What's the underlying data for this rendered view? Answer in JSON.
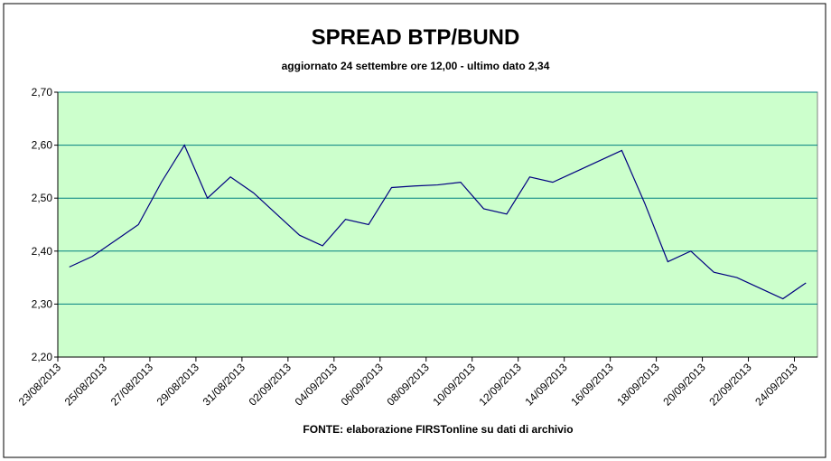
{
  "chart_data": {
    "type": "line",
    "title": "SPREAD BTP/BUND",
    "subtitle": "aggiornato 24 settembre ore 12,00  - ultimo dato 2,34",
    "source": "FONTE:  elaborazione FIRSTonline su dati di archivio",
    "categories": [
      "23/08/2013",
      null,
      "25/08/2013",
      null,
      "27/08/2013",
      null,
      "29/08/2013",
      null,
      "31/08/2013",
      null,
      "02/09/2013",
      null,
      "04/09/2013",
      null,
      "06/09/2013",
      null,
      "08/09/2013",
      null,
      "10/09/2013",
      null,
      "12/09/2013",
      null,
      "14/09/2013",
      null,
      "16/09/2013",
      null,
      "18/09/2013",
      null,
      "20/09/2013",
      null,
      "22/09/2013",
      null,
      "24/09/2013"
    ],
    "series": [
      {
        "color": "#000080",
        "values": [
          2.37,
          2.39,
          2.42,
          2.45,
          2.53,
          2.6,
          2.5,
          2.54,
          2.51,
          2.47,
          2.43,
          2.41,
          2.46,
          2.45,
          2.52,
          2.523,
          2.525,
          2.53,
          2.48,
          2.47,
          2.54,
          2.53,
          2.55,
          2.57,
          2.59,
          2.49,
          2.38,
          2.4,
          2.36,
          2.35,
          2.33,
          2.31,
          2.34
        ]
      }
    ],
    "ylim": [
      2.2,
      2.7
    ],
    "yticks": [
      {
        "value": 2.2,
        "label": "2,20"
      },
      {
        "value": 2.3,
        "label": "2,30"
      },
      {
        "value": 2.4,
        "label": "2,40"
      },
      {
        "value": 2.5,
        "label": "2,50"
      },
      {
        "value": 2.6,
        "label": "2,60"
      },
      {
        "value": 2.7,
        "label": "2,70"
      }
    ],
    "grid": true,
    "plot_background": "#ccffcc",
    "grid_color": "#008080"
  }
}
